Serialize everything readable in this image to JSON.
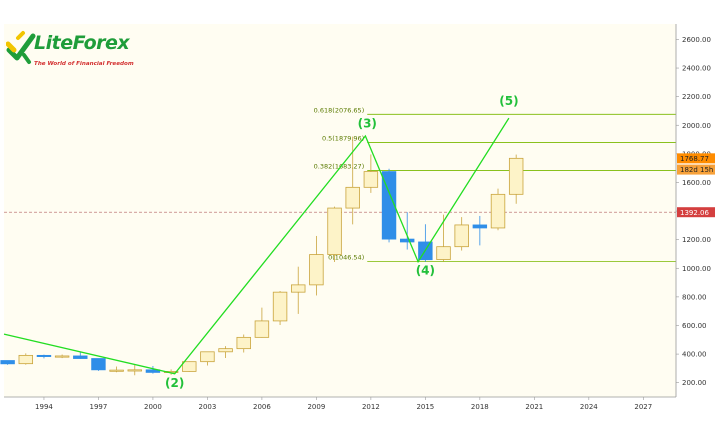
{
  "brand": {
    "name": "LiteForex",
    "tagline": "The World of Financial Freedom",
    "colors": {
      "green": "#1f9d3a",
      "yellow": "#f2c500",
      "red": "#d32f2f"
    }
  },
  "chart_data": {
    "type": "candlestick",
    "title": "",
    "xlabel": "",
    "ylabel": "",
    "timeframe": "yearly",
    "x_ticks": [
      "1994",
      "1997",
      "2000",
      "2003",
      "2006",
      "2009",
      "2012",
      "2015",
      "2018",
      "2021",
      "2024",
      "2027"
    ],
    "y_ticks": [
      "200.00",
      "400.00",
      "600.00",
      "800.00",
      "1000.00",
      "1200.00",
      "1400.00",
      "1600.00",
      "1800.00",
      "2000.00",
      "2200.00",
      "2400.00",
      "2600.00"
    ],
    "y_range": [
      100,
      2680
    ],
    "x_range": [
      1991.8,
      2028.8
    ],
    "grid": false,
    "colors": {
      "up_body": "#fdf3c8",
      "up_border": "#c9a43c",
      "down_body": "#2f8ee8",
      "down_border": "#2f8ee8",
      "fib_line": "#7ab800",
      "wave_line": "#22dd22",
      "wave_label": "#22c03a",
      "current_line": "#b06060",
      "price_tag": "#ff8c00",
      "current_tag": "#d43f3f"
    },
    "candles": [
      {
        "year": 1992,
        "open": 355,
        "high": 355,
        "low": 325,
        "close": 332
      },
      {
        "year": 1993,
        "open": 333,
        "high": 405,
        "low": 326,
        "close": 391
      },
      {
        "year": 1994,
        "open": 391,
        "high": 396,
        "low": 370,
        "close": 383
      },
      {
        "year": 1995,
        "open": 383,
        "high": 397,
        "low": 372,
        "close": 387
      },
      {
        "year": 1996,
        "open": 387,
        "high": 416,
        "low": 367,
        "close": 369
      },
      {
        "year": 1997,
        "open": 369,
        "high": 369,
        "low": 283,
        "close": 290
      },
      {
        "year": 1998,
        "open": 288,
        "high": 313,
        "low": 273,
        "close": 288
      },
      {
        "year": 1999,
        "open": 288,
        "high": 326,
        "low": 252,
        "close": 290
      },
      {
        "year": 2000,
        "open": 290,
        "high": 317,
        "low": 263,
        "close": 272
      },
      {
        "year": 2001,
        "open": 272,
        "high": 293,
        "low": 255,
        "close": 279
      },
      {
        "year": 2002,
        "open": 279,
        "high": 349,
        "low": 277,
        "close": 347
      },
      {
        "year": 2003,
        "open": 347,
        "high": 416,
        "low": 320,
        "close": 416
      },
      {
        "year": 2004,
        "open": 416,
        "high": 456,
        "low": 373,
        "close": 438
      },
      {
        "year": 2005,
        "open": 438,
        "high": 537,
        "low": 411,
        "close": 517
      },
      {
        "year": 2006,
        "open": 517,
        "high": 725,
        "low": 515,
        "close": 632
      },
      {
        "year": 2007,
        "open": 632,
        "high": 841,
        "low": 603,
        "close": 833
      },
      {
        "year": 2008,
        "open": 833,
        "high": 1011,
        "low": 681,
        "close": 884
      },
      {
        "year": 2009,
        "open": 884,
        "high": 1226,
        "low": 810,
        "close": 1096
      },
      {
        "year": 2010,
        "open": 1096,
        "high": 1431,
        "low": 1044,
        "close": 1421
      },
      {
        "year": 2011,
        "open": 1421,
        "high": 1921,
        "low": 1307,
        "close": 1566
      },
      {
        "year": 2012,
        "open": 1566,
        "high": 1796,
        "low": 1527,
        "close": 1676
      },
      {
        "year": 2013,
        "open": 1676,
        "high": 1696,
        "low": 1181,
        "close": 1204
      },
      {
        "year": 2014,
        "open": 1204,
        "high": 1392,
        "low": 1131,
        "close": 1184
      },
      {
        "year": 2015,
        "open": 1184,
        "high": 1308,
        "low": 1046,
        "close": 1060
      },
      {
        "year": 2016,
        "open": 1061,
        "high": 1375,
        "low": 1046,
        "close": 1151
      },
      {
        "year": 2017,
        "open": 1151,
        "high": 1358,
        "low": 1124,
        "close": 1303
      },
      {
        "year": 2018,
        "open": 1303,
        "high": 1366,
        "low": 1160,
        "close": 1282
      },
      {
        "year": 2019,
        "open": 1282,
        "high": 1557,
        "low": 1266,
        "close": 1517
      },
      {
        "year": 2020,
        "open": 1517,
        "high": 1795,
        "low": 1451,
        "close": 1768.77
      }
    ],
    "fib_levels": [
      {
        "label": "0.618(2076.65)",
        "value": 2076.65
      },
      {
        "label": "0.5(1879.96)",
        "value": 1879.96
      },
      {
        "label": "0.382(1683.27)",
        "value": 1683.27
      },
      {
        "label": "0(1046.54)",
        "value": 1046.54
      }
    ],
    "wave_path": [
      {
        "x": 1991.8,
        "y": 540
      },
      {
        "x": 2001.2,
        "y": 262
      },
      {
        "x": 2011.7,
        "y": 1925
      },
      {
        "x": 2014.6,
        "y": 1046
      },
      {
        "x": 2019.6,
        "y": 2050
      }
    ],
    "wave_labels": [
      {
        "text": "(2)",
        "x": 2001.2,
        "y": 170
      },
      {
        "text": "(3)",
        "x": 2011.8,
        "y": 1985
      },
      {
        "text": "(4)",
        "x": 2015.0,
        "y": 955
      },
      {
        "text": "(5)",
        "x": 2019.6,
        "y": 2140
      }
    ],
    "price_tags": [
      {
        "text": "1768.77",
        "value": 1768.77,
        "style": "last"
      },
      {
        "text": "182d 15h",
        "value": 1690,
        "style": "countdown"
      },
      {
        "text": "1392.06",
        "value": 1392.06,
        "style": "current"
      }
    ],
    "current_price_line": 1392.06
  }
}
